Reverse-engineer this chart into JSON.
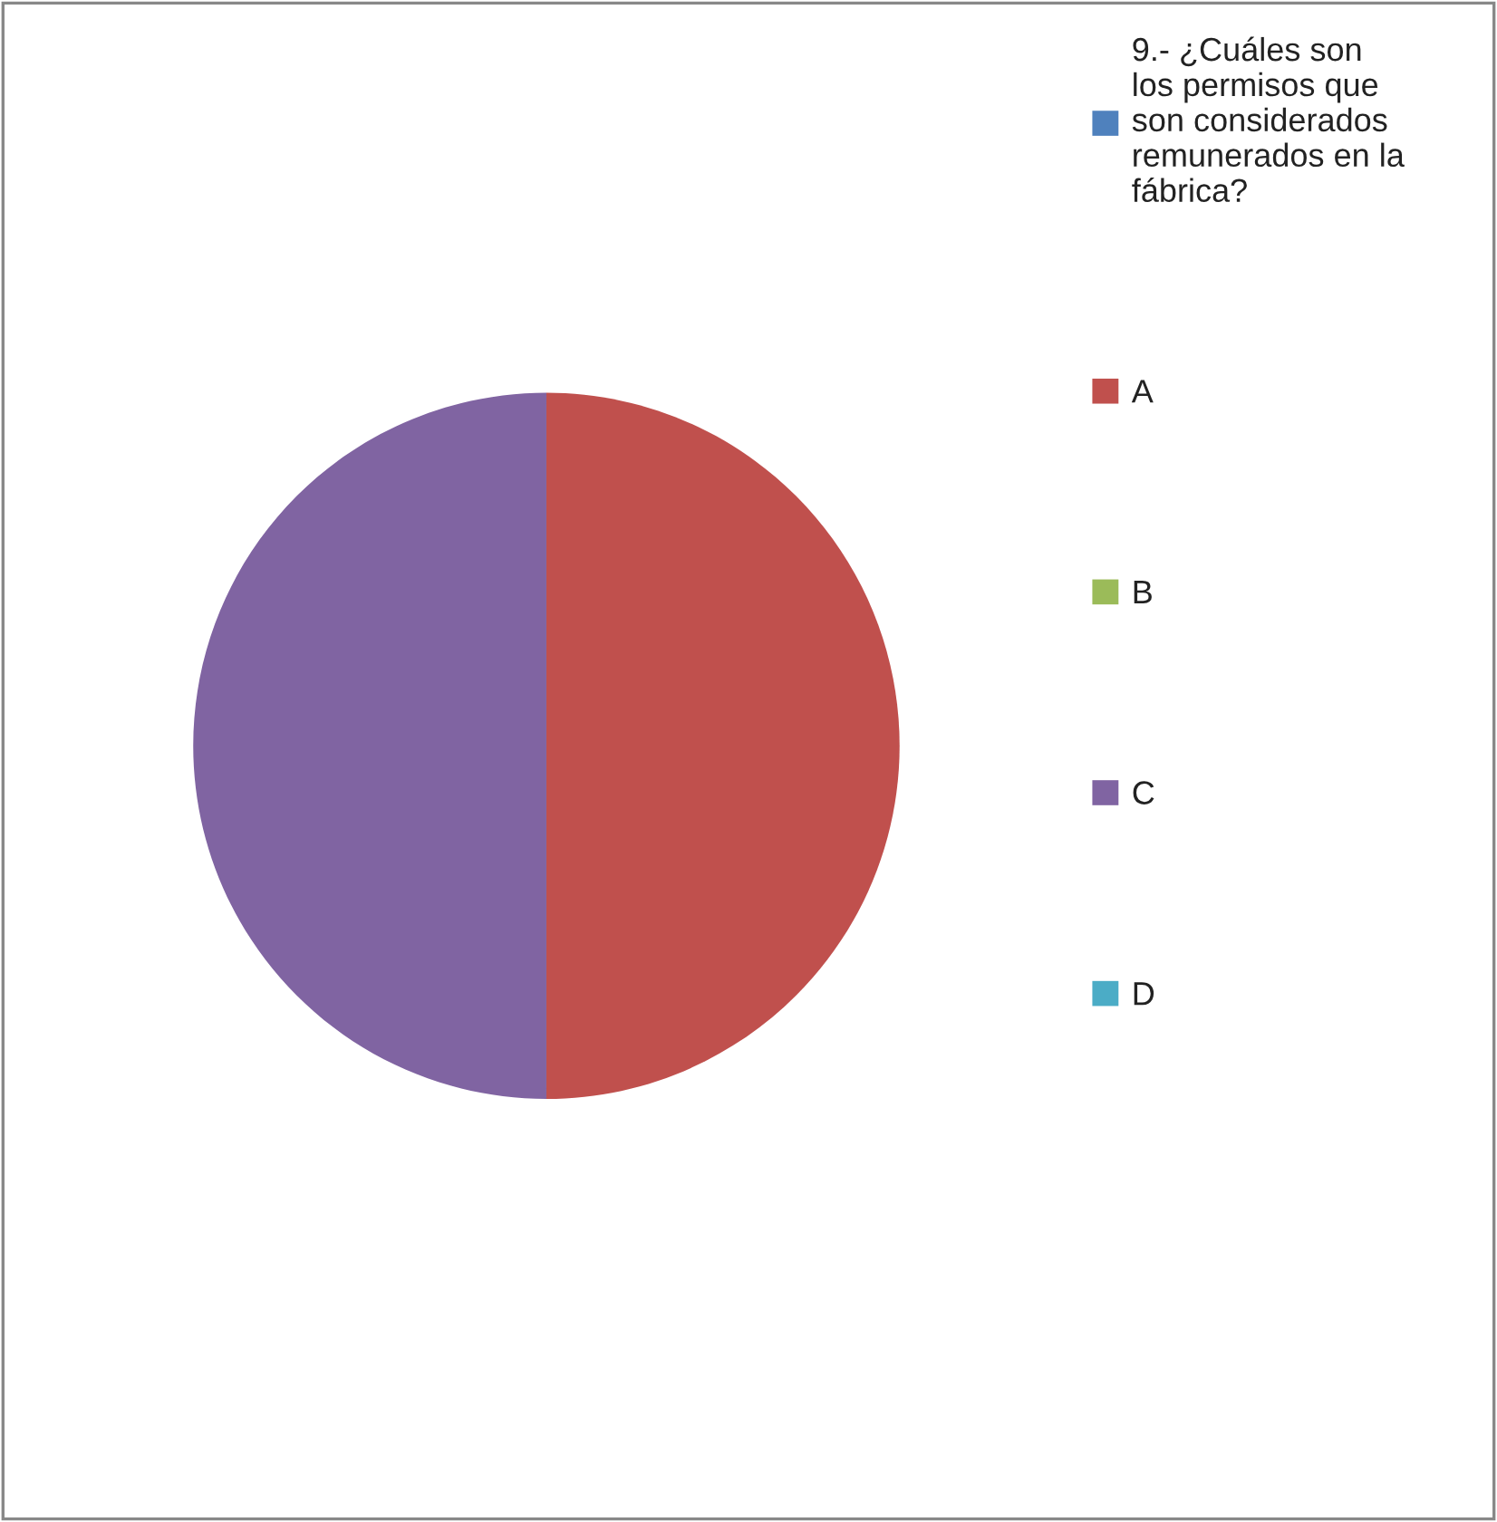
{
  "chart_data": {
    "type": "pie",
    "categories": [
      "9.- ¿Cuáles son los permisos que son considerados remunerados en la fábrica?",
      "A",
      "B",
      "C",
      "D"
    ],
    "values": [
      0,
      50,
      0,
      50,
      0
    ],
    "colors": [
      "#4f81bd",
      "#c0504d",
      "#9bbb59",
      "#8064a2",
      "#4bacc6"
    ],
    "legend": "right"
  }
}
